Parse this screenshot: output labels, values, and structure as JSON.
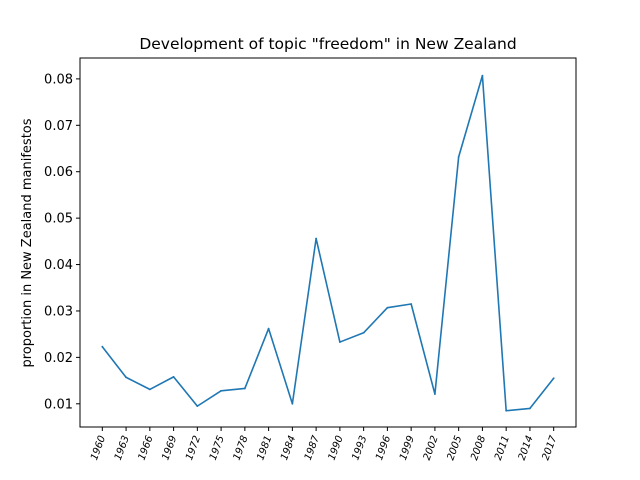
{
  "chart_data": {
    "type": "line",
    "title": "Development of topic \"freedom\" in New Zealand",
    "xlabel": "",
    "ylabel": "proportion in New Zealand manifestos",
    "categories": [
      "1960",
      "1963",
      "1966",
      "1969",
      "1972",
      "1975",
      "1978",
      "1981",
      "1984",
      "1987",
      "1990",
      "1993",
      "1996",
      "1999",
      "2002",
      "2005",
      "2008",
      "2011",
      "2014",
      "2017"
    ],
    "series": [
      {
        "values": [
          0.0223,
          0.0157,
          0.0131,
          0.0158,
          0.0095,
          0.0128,
          0.0133,
          0.0262,
          0.01,
          0.0456,
          0.0233,
          0.0253,
          0.0307,
          0.0315,
          0.0121,
          0.0632,
          0.0807,
          0.0085,
          0.009,
          0.0155
        ],
        "color": "#1f77b4"
      }
    ],
    "ylim": [
      0.005,
      0.0845
    ],
    "yticks": [
      "0.01",
      "0.02",
      "0.03",
      "0.04",
      "0.05",
      "0.06",
      "0.07",
      "0.08"
    ],
    "ytick_values": [
      0.01,
      0.02,
      0.03,
      0.04,
      0.05,
      0.06,
      0.07,
      0.08
    ],
    "grid": false,
    "legend": "none"
  }
}
